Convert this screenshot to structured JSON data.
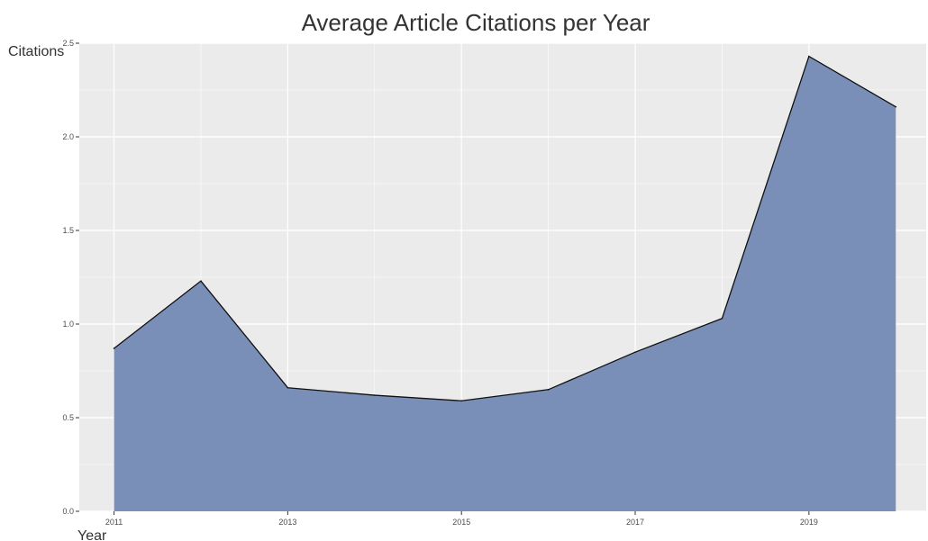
{
  "chart_data": {
    "type": "area",
    "title": "Average Article Citations per Year",
    "xlabel": "Year",
    "ylabel": "Citations",
    "x": [
      2011,
      2012,
      2013,
      2014,
      2015,
      2016,
      2017,
      2018,
      2019,
      2020
    ],
    "values": [
      0.87,
      1.23,
      0.66,
      0.62,
      0.59,
      0.65,
      0.85,
      1.03,
      2.43,
      2.16
    ],
    "xlim": [
      2010.6,
      2020.35
    ],
    "ylim": [
      0,
      2.5
    ],
    "x_ticks": [
      2011,
      2013,
      2015,
      2017,
      2019
    ],
    "x_tick_labels": [
      "2011",
      "2013",
      "2015",
      "2017",
      "2019"
    ],
    "y_ticks": [
      0,
      0.5,
      1,
      1.5,
      2,
      2.5
    ],
    "y_tick_labels": [
      "0.0",
      "0.5",
      "1.0",
      "1.5",
      "2.0",
      "2.5"
    ],
    "grid": true,
    "legend": "none",
    "colors": {
      "fill": "#7a8fb8",
      "line": "#111111",
      "panel": "#ebebeb",
      "grid": "#ffffff"
    }
  }
}
